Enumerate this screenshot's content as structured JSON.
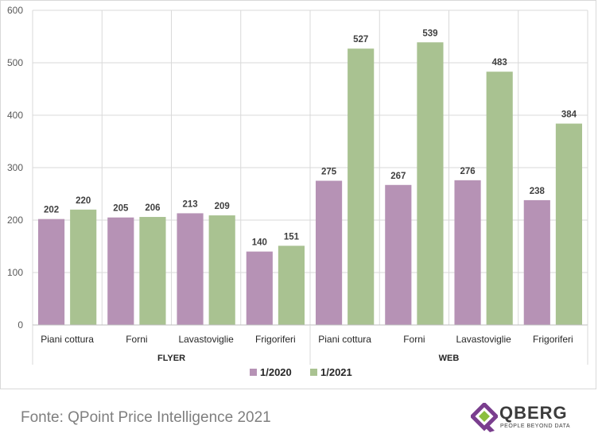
{
  "chart_data": {
    "type": "bar",
    "groups": [
      {
        "label": "FLYER",
        "categories": [
          "Piani cottura",
          "Forni",
          "Lavastoviglie",
          "Frigoriferi"
        ]
      },
      {
        "label": "WEB",
        "categories": [
          "Piani cottura",
          "Forni",
          "Lavastoviglie",
          "Frigoriferi"
        ]
      }
    ],
    "series": [
      {
        "name": "1/2020",
        "color": "#b692b5",
        "values": [
          202,
          205,
          213,
          140,
          275,
          267,
          276,
          238
        ]
      },
      {
        "name": "1/2021",
        "color": "#a9c291",
        "values": [
          220,
          206,
          209,
          151,
          527,
          539,
          483,
          384
        ]
      }
    ],
    "ylim": [
      0,
      600
    ],
    "yticks": [
      0,
      100,
      200,
      300,
      400,
      500,
      600
    ],
    "grid": true,
    "legend": "bottom-center",
    "data_labels": true
  },
  "source": "Fonte: QPoint Price Intelligence 2021",
  "logo": {
    "name": "QBERG",
    "tagline": "PEOPLE BEYOND DATA",
    "icon": "qberg-logo-mark",
    "colors": [
      "#7a3e8e",
      "#8bbf3f"
    ]
  }
}
